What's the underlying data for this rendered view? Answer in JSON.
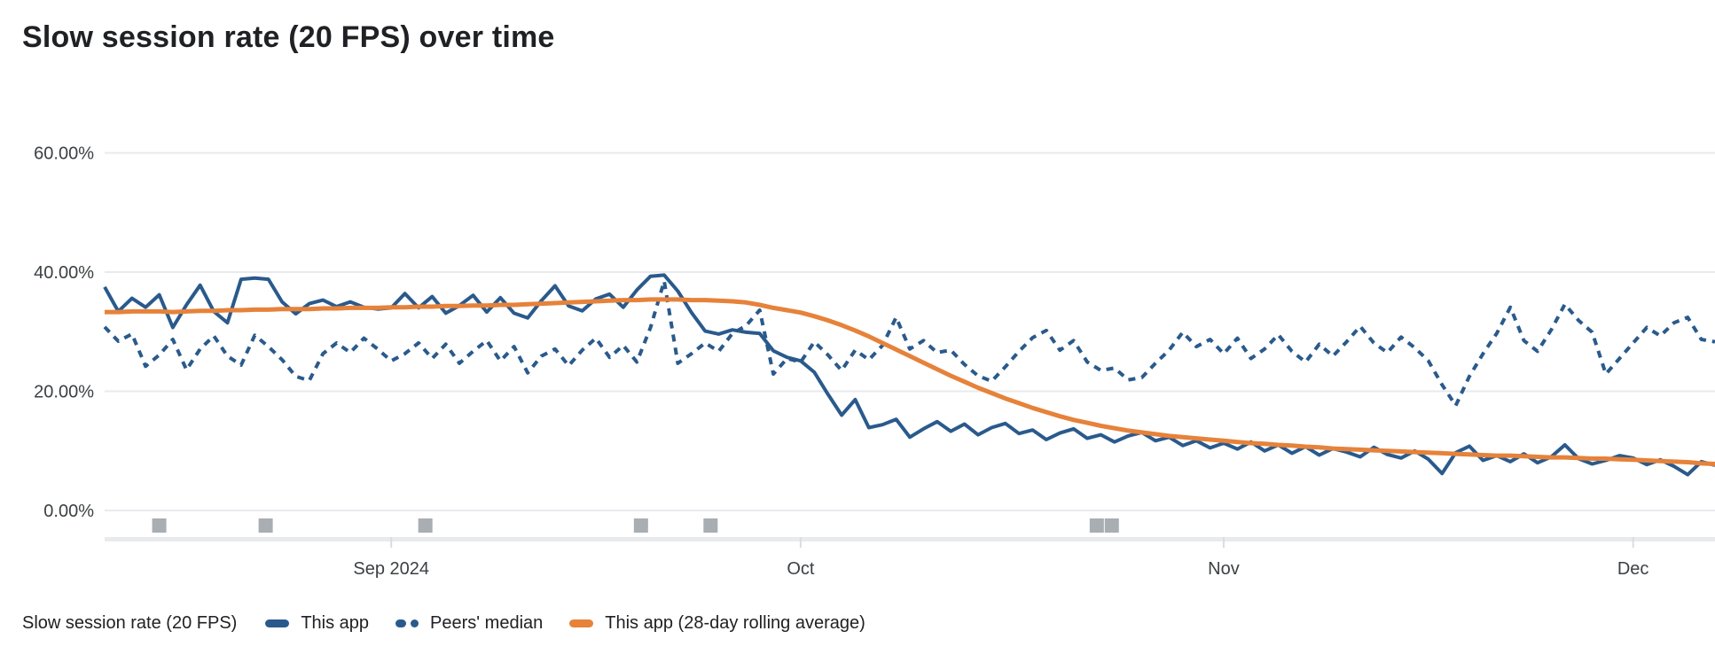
{
  "chart_data": {
    "type": "line",
    "title": "Slow session rate (20 FPS) over time",
    "legend": {
      "series_label": "Slow session rate (20 FPS)"
    },
    "y_axis": {
      "unit": "%",
      "tick_labels": [
        "60.00%",
        "40.00%",
        "20.00%",
        "0.00%"
      ],
      "tick_values": [
        60,
        40,
        20,
        0
      ],
      "ylim": [
        0,
        66
      ],
      "grid": true
    },
    "x_axis": {
      "resolution": "daily",
      "num_points": 119,
      "months": [
        {
          "label": "Sep 2024",
          "day_index": 21
        },
        {
          "label": "Oct",
          "day_index": 51
        },
        {
          "label": "Nov",
          "day_index": 82
        },
        {
          "label": "Dec",
          "day_index": 112
        }
      ]
    },
    "series": [
      {
        "name": "This app",
        "data_name": "this-app-line",
        "line_style": "solid",
        "color": "#2a5a8c",
        "width": 4,
        "values": [
          37.5,
          33.4,
          35.6,
          34.1,
          36.2,
          30.7,
          34.5,
          37.8,
          33.4,
          31.5,
          38.8,
          39.0,
          38.8,
          35.0,
          33.0,
          34.7,
          35.3,
          34.2,
          35.0,
          34.1,
          33.8,
          34.0,
          36.4,
          34.0,
          35.9,
          33.1,
          34.4,
          36.1,
          33.3,
          35.7,
          33.1,
          32.3,
          35.2,
          37.7,
          34.3,
          33.5,
          35.5,
          36.3,
          34.1,
          37.0,
          39.3,
          39.5,
          36.8,
          33.2,
          30.1,
          29.6,
          30.3,
          29.9,
          29.7,
          26.8,
          25.7,
          25.1,
          23.2,
          19.5,
          16.0,
          18.6,
          13.9,
          14.4,
          15.3,
          12.3,
          13.7,
          14.9,
          13.3,
          14.5,
          12.7,
          13.9,
          14.6,
          12.9,
          13.5,
          11.9,
          13.0,
          13.7,
          12.1,
          12.7,
          11.5,
          12.5,
          13.1,
          11.7,
          12.3,
          10.9,
          11.7,
          10.5,
          11.3,
          10.3,
          11.5,
          10.0,
          11.0,
          9.6,
          10.7,
          9.3,
          10.4,
          9.8,
          9.0,
          10.6,
          9.4,
          8.8,
          10.0,
          8.6,
          6.2,
          9.7,
          10.8,
          8.4,
          9.2,
          8.2,
          9.5,
          8.0,
          9.0,
          11.0,
          8.7,
          7.8,
          8.4,
          9.2,
          8.8,
          7.7,
          8.5,
          7.4,
          6.0,
          8.2,
          7.6
        ]
      },
      {
        "name": "Peers' median",
        "data_name": "peers-median-line",
        "line_style": "dashed",
        "color": "#2a5a8c",
        "width": 4,
        "values": [
          30.8,
          28.4,
          29.6,
          24.2,
          26.1,
          28.7,
          23.6,
          27.1,
          29.3,
          25.9,
          24.4,
          29.4,
          27.5,
          25.3,
          22.5,
          21.8,
          26.3,
          28.1,
          26.5,
          28.9,
          27.1,
          25.1,
          26.3,
          28.1,
          25.5,
          27.9,
          24.7,
          26.7,
          28.5,
          25.1,
          27.5,
          23.1,
          25.9,
          27.1,
          24.3,
          26.9,
          28.9,
          25.7,
          27.7,
          24.9,
          30.7,
          38.5,
          24.7,
          26.3,
          28.1,
          26.7,
          29.7,
          31.0,
          33.6,
          22.9,
          25.5,
          24.9,
          28.3,
          26.1,
          23.5,
          26.9,
          25.3,
          27.7,
          32.4,
          27.1,
          28.5,
          26.5,
          26.9,
          24.5,
          22.6,
          21.7,
          24.1,
          26.7,
          29.0,
          30.2,
          26.9,
          28.5,
          24.9,
          23.5,
          23.9,
          21.9,
          22.3,
          24.7,
          26.9,
          29.9,
          27.5,
          28.7,
          26.3,
          28.9,
          25.5,
          27.1,
          29.5,
          26.7,
          24.9,
          27.9,
          25.9,
          28.3,
          30.9,
          28.1,
          26.5,
          29.1,
          27.3,
          25.1,
          21.1,
          17.6,
          22.5,
          26.3,
          29.7,
          34.1,
          28.5,
          26.7,
          30.3,
          34.6,
          31.9,
          29.9,
          22.9,
          25.5,
          28.1,
          30.7,
          29.3,
          31.5,
          32.4,
          28.7,
          28.3
        ]
      },
      {
        "name": "This app (28-day rolling average)",
        "data_name": "rolling-average-line",
        "line_style": "solid",
        "color": "#e6823a",
        "width": 5,
        "values": [
          33.3,
          33.3,
          33.4,
          33.4,
          33.4,
          33.3,
          33.4,
          33.5,
          33.5,
          33.6,
          33.6,
          33.7,
          33.7,
          33.8,
          33.8,
          33.8,
          33.9,
          33.9,
          34.0,
          34.0,
          34.0,
          34.1,
          34.1,
          34.2,
          34.2,
          34.3,
          34.3,
          34.4,
          34.4,
          34.5,
          34.5,
          34.6,
          34.7,
          34.8,
          34.9,
          35.0,
          35.1,
          35.2,
          35.3,
          35.3,
          35.4,
          35.4,
          35.4,
          35.3,
          35.3,
          35.2,
          35.1,
          34.9,
          34.5,
          34.0,
          33.6,
          33.2,
          32.6,
          31.9,
          31.1,
          30.2,
          29.2,
          28.1,
          27.0,
          25.9,
          24.8,
          23.7,
          22.6,
          21.6,
          20.6,
          19.7,
          18.8,
          18.0,
          17.2,
          16.5,
          15.8,
          15.2,
          14.7,
          14.2,
          13.8,
          13.4,
          13.1,
          12.8,
          12.5,
          12.3,
          12.1,
          11.9,
          11.7,
          11.5,
          11.3,
          11.2,
          11.0,
          10.9,
          10.7,
          10.6,
          10.4,
          10.3,
          10.2,
          10.1,
          10.0,
          9.9,
          9.8,
          9.7,
          9.6,
          9.5,
          9.4,
          9.3,
          9.2,
          9.2,
          9.1,
          9.0,
          8.9,
          8.9,
          8.8,
          8.7,
          8.7,
          8.6,
          8.5,
          8.4,
          8.3,
          8.2,
          8.1,
          7.9,
          7.8
        ]
      }
    ],
    "release_markers": {
      "color": "#9aa0a6",
      "day_positions": [
        4.0,
        11.8,
        23.5,
        39.3,
        44.4,
        72.7,
        73.8
      ]
    },
    "colors": {
      "title_text": "#202124",
      "axis_text": "#3c4043",
      "gridline": "#e8eaed",
      "axis_baseline": "#e8eaed",
      "axis_tick": "#dadce0"
    }
  }
}
